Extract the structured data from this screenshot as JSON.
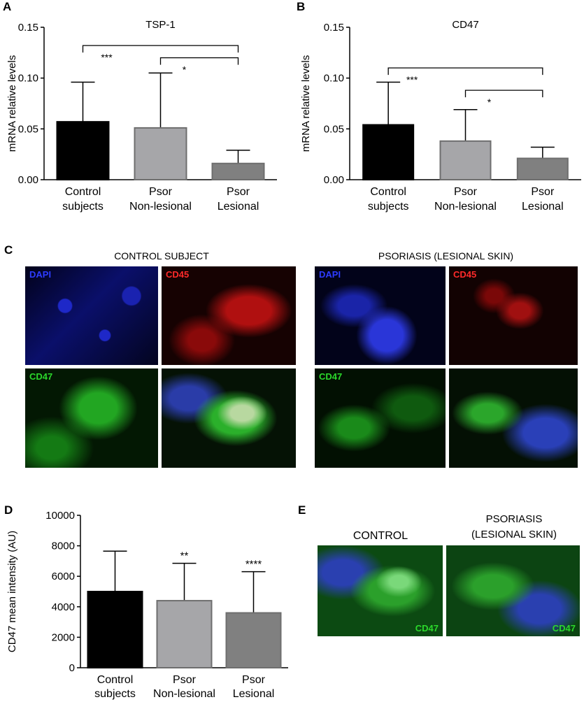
{
  "panel_labels": {
    "A": "A",
    "B": "B",
    "C": "C",
    "D": "D",
    "E": "E"
  },
  "chart_data": [
    {
      "id": "A",
      "type": "bar",
      "title": "TSP-1",
      "ylabel": "mRNA relative levels",
      "xlabel": "",
      "categories": [
        [
          "Control",
          "subjects"
        ],
        [
          "Psor",
          "Non-lesional"
        ],
        [
          "Psor",
          "Lesional"
        ]
      ],
      "values": [
        0.057,
        0.051,
        0.016
      ],
      "errors": [
        0.039,
        0.054,
        0.013
      ],
      "colors": [
        "#000000",
        "#a6a6a9",
        "#808080"
      ],
      "ylim": [
        0,
        0.15
      ],
      "yticks": [
        0,
        0.05,
        0.1,
        0.15
      ],
      "ytick_labels": [
        "0.00",
        "0.05",
        "0.10",
        "0.15"
      ],
      "brackets": [
        {
          "from": 0,
          "to": 2,
          "label": "***",
          "y": 0.132
        },
        {
          "from": 1,
          "to": 2,
          "label": "*",
          "y": 0.12
        }
      ]
    },
    {
      "id": "B",
      "type": "bar",
      "title": "CD47",
      "ylabel": "mRNA relative levels",
      "xlabel": "",
      "categories": [
        [
          "Control",
          "subjects"
        ],
        [
          "Psor",
          "Non-lesional"
        ],
        [
          "Psor",
          "Lesional"
        ]
      ],
      "values": [
        0.054,
        0.038,
        0.021
      ],
      "errors": [
        0.042,
        0.031,
        0.011
      ],
      "colors": [
        "#000000",
        "#a6a6a9",
        "#808080"
      ],
      "ylim": [
        0,
        0.15
      ],
      "yticks": [
        0,
        0.05,
        0.1,
        0.15
      ],
      "ytick_labels": [
        "0.00",
        "0.05",
        "0.10",
        "0.15"
      ],
      "brackets": [
        {
          "from": 0,
          "to": 2,
          "label": "***",
          "y": 0.11
        },
        {
          "from": 1,
          "to": 2,
          "label": "*",
          "y": 0.088
        }
      ]
    },
    {
      "id": "D",
      "type": "bar",
      "title": "",
      "ylabel": "CD47 mean intensity (AU)",
      "xlabel": "",
      "categories": [
        [
          "Control",
          "subjects"
        ],
        [
          "Psor",
          "Non-lesional"
        ],
        [
          "Psor",
          "Lesional"
        ]
      ],
      "values": [
        5000,
        4400,
        3600
      ],
      "errors": [
        2650,
        2450,
        2700
      ],
      "colors": [
        "#000000",
        "#a6a6a9",
        "#808080"
      ],
      "ylim": [
        0,
        10000
      ],
      "yticks": [
        0,
        2000,
        4000,
        6000,
        8000,
        10000
      ],
      "ytick_labels": [
        "0",
        "2000",
        "4000",
        "6000",
        "8000",
        "10000"
      ],
      "sig_labels": [
        "",
        "**",
        "****"
      ]
    }
  ],
  "panel_c": {
    "control_title": "CONTROL SUBJECT",
    "psoriasis_title": "PSORIASIS (LESIONAL SKIN)",
    "channel_dapi": "DAPI",
    "channel_cd45": "CD45",
    "channel_cd47": "CD47"
  },
  "panel_e": {
    "control_title": "CONTROL",
    "psoriasis_title_line1": "PSORIASIS",
    "psoriasis_title_line2": "(LESIONAL SKIN)",
    "channel_label": "CD47"
  },
  "colors": {
    "dapi": "#2d3cff",
    "cd45": "#ff2a2a",
    "cd47": "#2bd82b",
    "black_bar": "#000000",
    "light_gray_bar": "#a6a6a9",
    "dark_gray_bar": "#808080"
  }
}
